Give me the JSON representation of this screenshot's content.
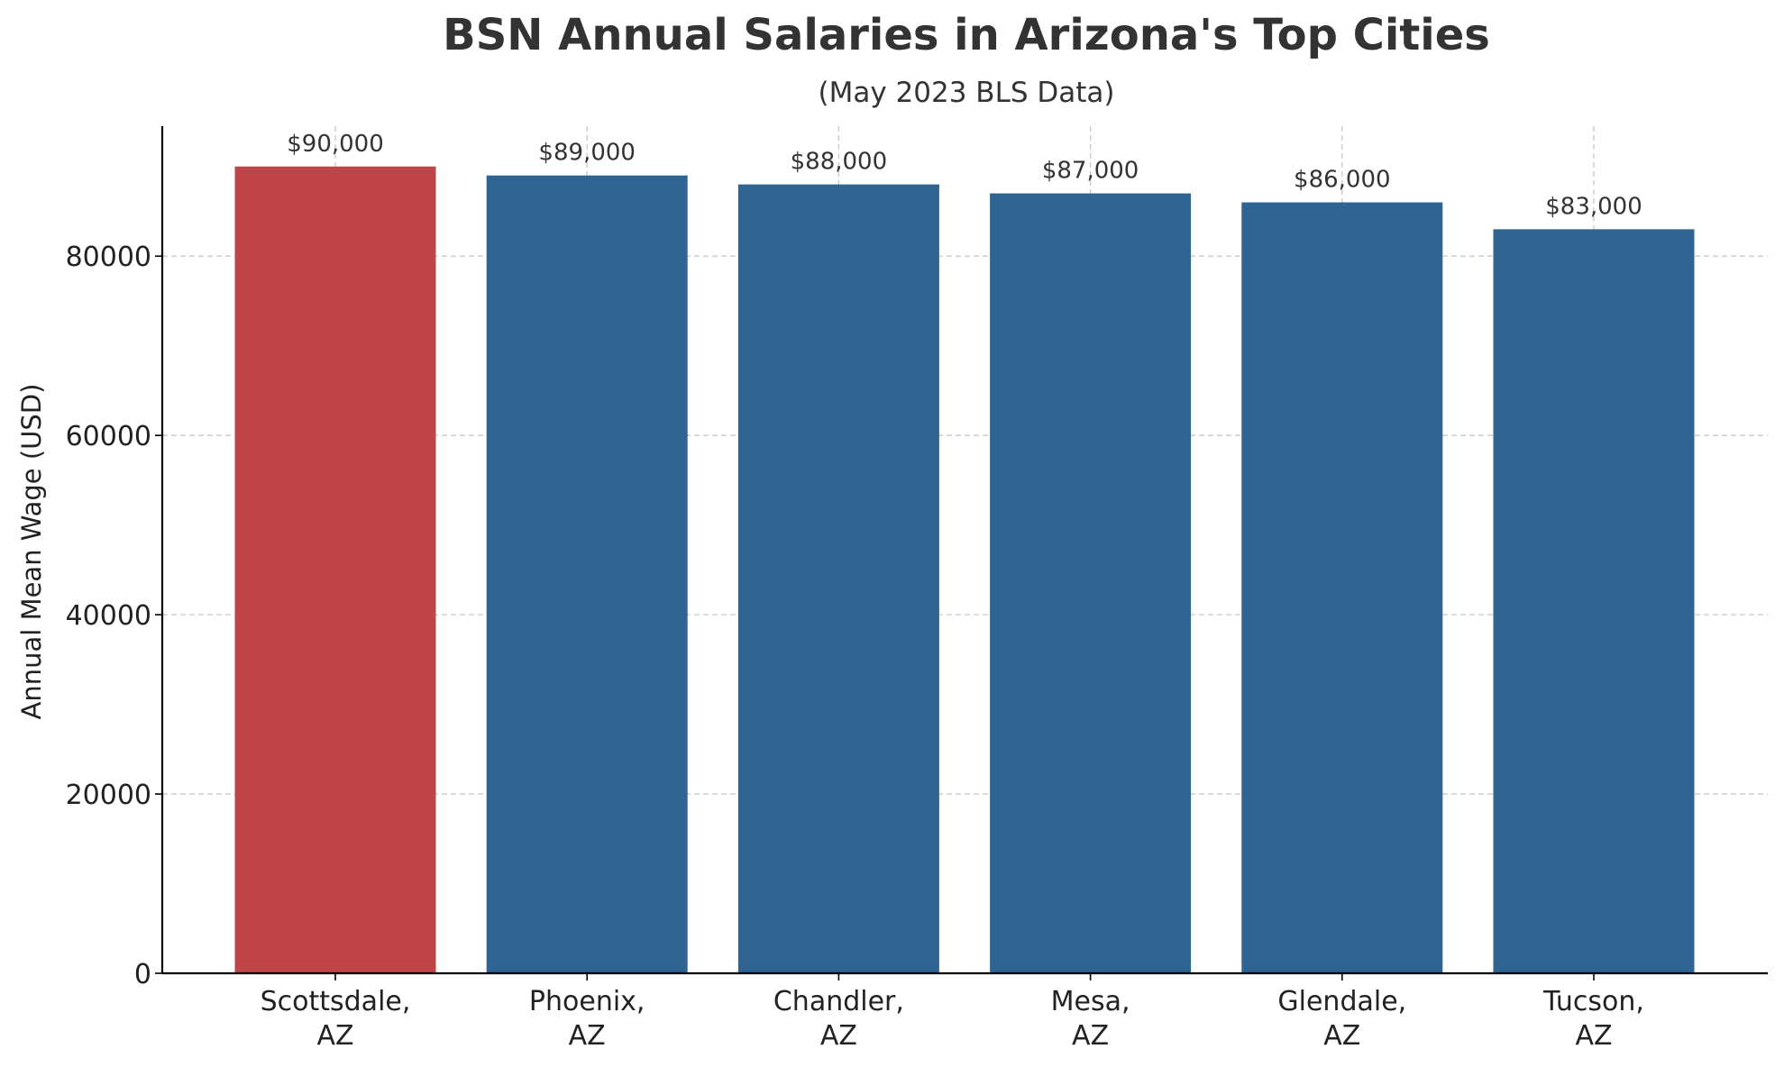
{
  "chart_data": {
    "type": "bar",
    "title": "BSN Annual Salaries in Arizona's Top Cities",
    "subtitle": "(May 2023 BLS Data)",
    "xlabel": "",
    "ylabel": "Annual Mean Wage (USD)",
    "categories": [
      "Scottsdale, AZ",
      "Phoenix, AZ",
      "Chandler, AZ",
      "Mesa, AZ",
      "Glendale, AZ",
      "Tucson, AZ"
    ],
    "category_lines": [
      [
        "Scottsdale,",
        "AZ"
      ],
      [
        "Phoenix,",
        "AZ"
      ],
      [
        "Chandler,",
        "AZ"
      ],
      [
        "Mesa,",
        "AZ"
      ],
      [
        "Glendale,",
        "AZ"
      ],
      [
        "Tucson,",
        "AZ"
      ]
    ],
    "values": [
      90000,
      89000,
      88000,
      87000,
      86000,
      83000
    ],
    "data_labels": [
      "$90,000",
      "$89,000",
      "$88,000",
      "$87,000",
      "$86,000",
      "$83,000"
    ],
    "bar_colors": [
      "#bf4549",
      "#2f6392",
      "#2f6392",
      "#2f6392",
      "#2f6392",
      "#2f6392"
    ],
    "highlight_color": "#bf4549",
    "bar_color": "#2f6392",
    "ylim": [
      0,
      94500
    ],
    "yticks": [
      0,
      20000,
      40000,
      60000,
      80000
    ],
    "ytick_labels": [
      "0",
      "20000",
      "40000",
      "60000",
      "80000"
    ],
    "grid": true,
    "grid_style": "dashed"
  }
}
